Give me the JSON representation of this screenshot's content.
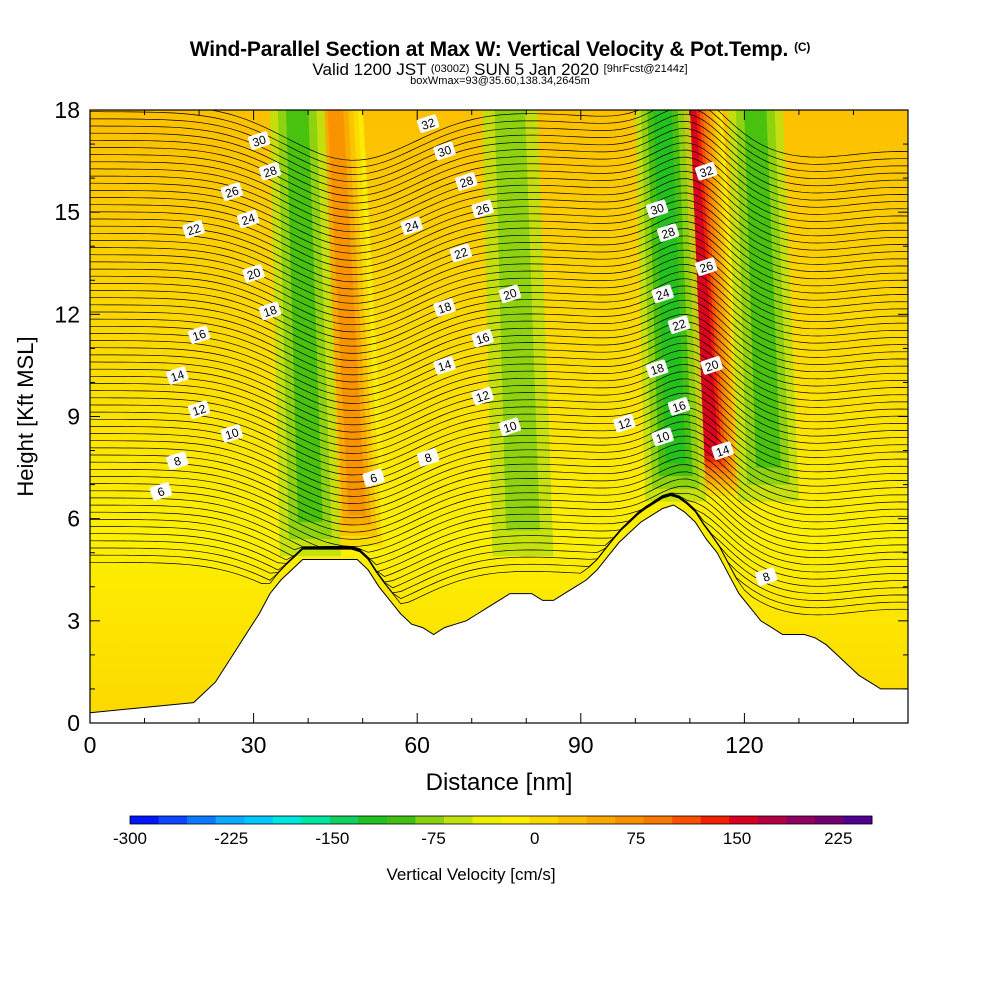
{
  "title": {
    "main": "Wind-Parallel Section at Max W: Vertical Velocity & Pot.Temp.",
    "copyright": "(C)",
    "valid_prefix": "Valid 1200 JST",
    "valid_utc": "(0300Z)",
    "valid_date": "SUN 5 Jan 2020",
    "forecast": "[9hrFcst@2144z]",
    "boxwmax": "boxWmax=93@35.60,138.34,2645m"
  },
  "chart_data": {
    "type": "heatmap",
    "xlabel": "Distance [nm]",
    "ylabel": "Height [Kft MSL]",
    "xlim": [
      0,
      150
    ],
    "ylim": [
      0,
      18
    ],
    "x_ticks": [
      0,
      30,
      60,
      90,
      120
    ],
    "y_ticks": [
      0,
      3,
      6,
      9,
      12,
      15,
      18
    ],
    "colorbar": {
      "label": "Vertical Velocity [cm/s]",
      "min": -300,
      "max": 250,
      "step": 25,
      "tick_values": [
        -300,
        -225,
        -150,
        -75,
        0,
        75,
        150,
        225
      ],
      "colors": [
        "#0014ff",
        "#0a46ff",
        "#0a78ff",
        "#0aaaff",
        "#00c8ff",
        "#00e6dc",
        "#00e6a0",
        "#10d060",
        "#20c020",
        "#40c010",
        "#88d010",
        "#c0e010",
        "#eaf000",
        "#fcf000",
        "#fcd800",
        "#fcc000",
        "#f8a800",
        "#f89000",
        "#f87800",
        "#f85000",
        "#f02000",
        "#d80020",
        "#b40040",
        "#900060",
        "#700070",
        "#500090"
      ]
    },
    "w_features": [
      {
        "x": 50,
        "w": 140,
        "desc": "updraft"
      },
      {
        "x": 41,
        "w": -80,
        "desc": "downdraft"
      },
      {
        "x": 115,
        "w": 230,
        "desc": "updraft"
      },
      {
        "x": 108,
        "w": -110,
        "desc": "downdraft"
      },
      {
        "x": 125,
        "w": -90,
        "desc": "downdraft"
      },
      {
        "x": 80,
        "w": -60,
        "desc": "downdraft"
      }
    ],
    "terrain": {
      "x": [
        0,
        19,
        21,
        23,
        25,
        27,
        29,
        31,
        33,
        35,
        37,
        39,
        41,
        43,
        45,
        47,
        49,
        51,
        53,
        55,
        57,
        59,
        61,
        63,
        65,
        67,
        69,
        71,
        73,
        75,
        77,
        79,
        81,
        83,
        85,
        87,
        89,
        91,
        93,
        95,
        97,
        99,
        101,
        103,
        105,
        107,
        109,
        111,
        113,
        115,
        117,
        119,
        121,
        123,
        125,
        127,
        129,
        131,
        133,
        135,
        137,
        139,
        141,
        143,
        145,
        147,
        150
      ],
      "y": [
        0.3,
        0.6,
        0.9,
        1.2,
        1.7,
        2.2,
        2.7,
        3.2,
        3.8,
        4.2,
        4.5,
        4.8,
        4.8,
        4.8,
        4.8,
        4.8,
        4.8,
        4.5,
        4.0,
        3.6,
        3.2,
        2.9,
        2.8,
        2.6,
        2.8,
        2.9,
        3.0,
        3.2,
        3.4,
        3.6,
        3.8,
        3.8,
        3.8,
        3.6,
        3.6,
        3.8,
        4.0,
        4.2,
        4.5,
        4.9,
        5.3,
        5.6,
        5.9,
        6.1,
        6.3,
        6.4,
        6.2,
        5.9,
        5.4,
        5.0,
        4.4,
        3.8,
        3.4,
        3.0,
        2.8,
        2.6,
        2.6,
        2.6,
        2.5,
        2.3,
        2.0,
        1.7,
        1.4,
        1.2,
        1.0,
        1.0,
        1.0
      ]
    },
    "theta_labels": [
      {
        "text": "6",
        "x": 13,
        "y": 6.8
      },
      {
        "text": "6",
        "x": 52,
        "y": 7.2
      },
      {
        "text": "8",
        "x": 16,
        "y": 7.7
      },
      {
        "text": "8",
        "x": 62,
        "y": 7.8
      },
      {
        "text": "8",
        "x": 124,
        "y": 4.3
      },
      {
        "text": "10",
        "x": 26,
        "y": 8.5
      },
      {
        "text": "10",
        "x": 77,
        "y": 8.7
      },
      {
        "text": "10",
        "x": 105,
        "y": 8.4
      },
      {
        "text": "12",
        "x": 20,
        "y": 9.2
      },
      {
        "text": "12",
        "x": 72,
        "y": 9.6
      },
      {
        "text": "12",
        "x": 98,
        "y": 8.8
      },
      {
        "text": "14",
        "x": 16,
        "y": 10.2
      },
      {
        "text": "14",
        "x": 65,
        "y": 10.5
      },
      {
        "text": "14",
        "x": 116,
        "y": 8.0
      },
      {
        "text": "16",
        "x": 20,
        "y": 11.4
      },
      {
        "text": "16",
        "x": 72,
        "y": 11.3
      },
      {
        "text": "16",
        "x": 108,
        "y": 9.3
      },
      {
        "text": "18",
        "x": 33,
        "y": 12.1
      },
      {
        "text": "18",
        "x": 65,
        "y": 12.2
      },
      {
        "text": "18",
        "x": 104,
        "y": 10.4
      },
      {
        "text": "20",
        "x": 30,
        "y": 13.2
      },
      {
        "text": "20",
        "x": 77,
        "y": 12.6
      },
      {
        "text": "20",
        "x": 114,
        "y": 10.5
      },
      {
        "text": "22",
        "x": 19,
        "y": 14.5
      },
      {
        "text": "22",
        "x": 68,
        "y": 13.8
      },
      {
        "text": "22",
        "x": 108,
        "y": 11.7
      },
      {
        "text": "24",
        "x": 29,
        "y": 14.8
      },
      {
        "text": "24",
        "x": 59,
        "y": 14.6
      },
      {
        "text": "24",
        "x": 105,
        "y": 12.6
      },
      {
        "text": "26",
        "x": 26,
        "y": 15.6
      },
      {
        "text": "26",
        "x": 72,
        "y": 15.1
      },
      {
        "text": "26",
        "x": 113,
        "y": 13.4
      },
      {
        "text": "28",
        "x": 33,
        "y": 16.2
      },
      {
        "text": "28",
        "x": 69,
        "y": 15.9
      },
      {
        "text": "28",
        "x": 106,
        "y": 14.4
      },
      {
        "text": "30",
        "x": 31,
        "y": 17.1
      },
      {
        "text": "30",
        "x": 65,
        "y": 16.8
      },
      {
        "text": "30",
        "x": 104,
        "y": 15.1
      },
      {
        "text": "32",
        "x": 62,
        "y": 17.6
      },
      {
        "text": "32",
        "x": 113,
        "y": 16.2
      }
    ]
  }
}
